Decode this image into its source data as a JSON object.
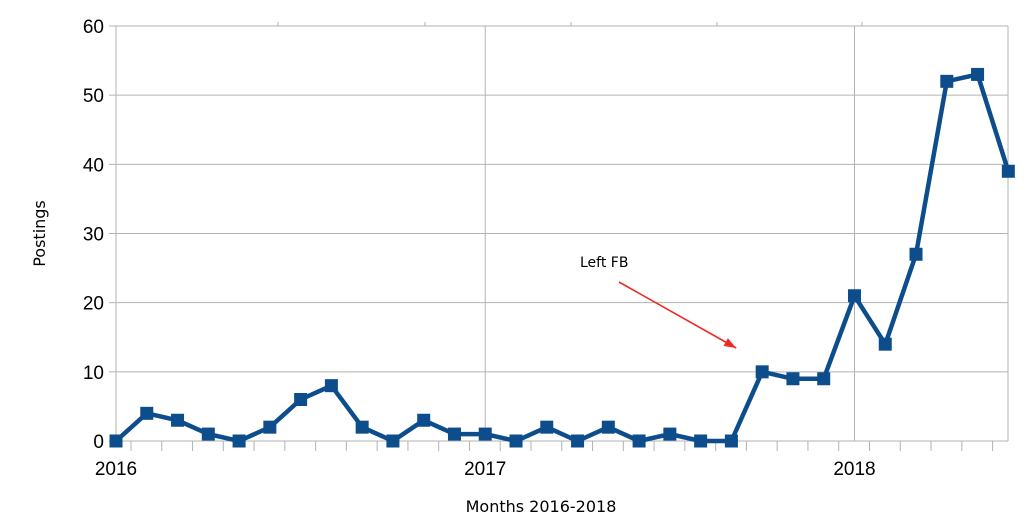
{
  "chart_data": {
    "type": "line",
    "xlabel": "Months 2016-2018",
    "ylabel": "Postings",
    "ylim": [
      0,
      60
    ],
    "yticks": [
      "0",
      "10",
      "20",
      "30",
      "40",
      "50",
      "60"
    ],
    "x_tick_labels": [
      "2016",
      "2017",
      "2018"
    ],
    "grid": true,
    "colors": {
      "series": "#0e4d8c",
      "grid": "#b3b3b3",
      "annotation_arrow": "#ee2a24"
    },
    "series": [
      {
        "x": [
          "2016-01",
          "2016-02",
          "2016-03",
          "2016-04",
          "2016-05",
          "2016-06",
          "2016-07",
          "2016-08",
          "2016-09",
          "2016-10",
          "2016-11",
          "2016-12",
          "2017-01",
          "2017-02",
          "2017-03",
          "2017-04",
          "2017-05",
          "2017-06",
          "2017-07",
          "2017-08",
          "2017-09",
          "2017-10",
          "2017-11",
          "2017-12",
          "2018-01",
          "2018-02",
          "2018-03",
          "2018-04",
          "2018-05",
          "2018-06"
        ],
        "values": [
          0,
          4,
          3,
          1,
          0,
          2,
          6,
          8,
          2,
          0,
          3,
          1,
          1,
          0,
          2,
          0,
          2,
          0,
          1,
          0,
          0,
          10,
          9,
          9,
          21,
          14,
          27,
          52,
          53,
          39
        ]
      }
    ],
    "annotations": [
      {
        "text": "Left FB",
        "points_to": "2017-10"
      }
    ]
  }
}
